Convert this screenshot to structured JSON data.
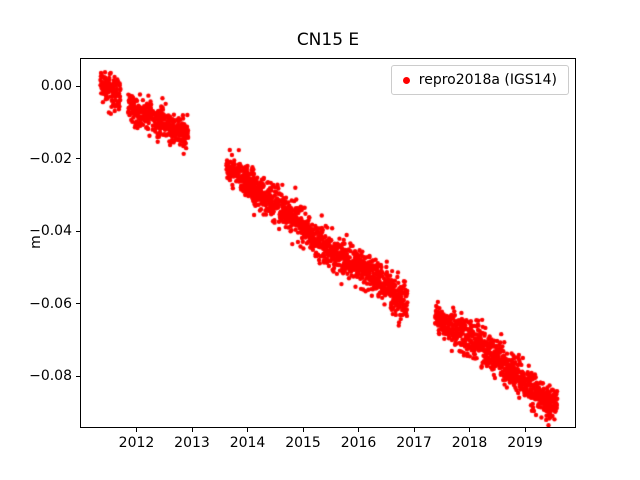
{
  "legend": {
    "label": "repro2018a (IGS14)",
    "marker_color": "#ff0000",
    "edge_color": "#cccccc"
  },
  "chart_data": {
    "type": "scatter",
    "title": "CN15 E",
    "xlabel": "",
    "ylabel": "m",
    "xlim": [
      2011.0,
      2019.9
    ],
    "ylim": [
      -0.094,
      0.0075
    ],
    "xticks": [
      2012,
      2013,
      2014,
      2015,
      2016,
      2017,
      2018,
      2019
    ],
    "xtick_labels": [
      "2012",
      "2013",
      "2014",
      "2015",
      "2016",
      "2017",
      "2018",
      "2019"
    ],
    "yticks": [
      0.0,
      -0.02,
      -0.04,
      -0.06,
      -0.08
    ],
    "ytick_labels": [
      "0.00",
      "−0.02",
      "−0.04",
      "−0.06",
      "−0.08"
    ],
    "grid": false,
    "legend_position": "upper right",
    "marker_size_px": 2.2,
    "series": [
      {
        "name": "repro2018a (IGS14)",
        "color": "#ff0000",
        "marker": "dot",
        "points_per_year": 365,
        "noise_seed": 42,
        "segments": [
          {
            "x0": 2011.35,
            "x1": 2011.71,
            "y0": 0.0005,
            "y1": -0.0025,
            "noise": 0.0022
          },
          {
            "x0": 2011.85,
            "x1": 2012.3,
            "y0": -0.006,
            "y1": -0.009,
            "noise": 0.0022
          },
          {
            "x0": 2012.33,
            "x1": 2012.93,
            "y0": -0.009,
            "y1": -0.0135,
            "noise": 0.0022
          },
          {
            "x0": 2013.62,
            "x1": 2014.02,
            "y0": -0.0225,
            "y1": -0.0265,
            "noise": 0.002
          },
          {
            "x0": 2013.95,
            "x1": 2014.12,
            "y0": -0.0265,
            "y1": -0.027,
            "noise": 0.0018
          },
          {
            "x0": 2014.05,
            "x1": 2014.6,
            "y0": -0.028,
            "y1": -0.0335,
            "noise": 0.0025
          },
          {
            "x0": 2014.6,
            "x1": 2015.12,
            "y0": -0.0335,
            "y1": -0.039,
            "noise": 0.0025
          },
          {
            "x0": 2015.12,
            "x1": 2015.5,
            "y0": -0.041,
            "y1": -0.0455,
            "noise": 0.0025
          },
          {
            "x0": 2015.5,
            "x1": 2016.05,
            "y0": -0.0455,
            "y1": -0.05,
            "noise": 0.0025
          },
          {
            "x0": 2016.05,
            "x1": 2016.6,
            "y0": -0.05,
            "y1": -0.0565,
            "noise": 0.0025
          },
          {
            "x0": 2016.6,
            "x1": 2016.88,
            "y0": -0.0565,
            "y1": -0.06,
            "noise": 0.0028
          },
          {
            "x0": 2017.38,
            "x1": 2017.62,
            "y0": -0.0635,
            "y1": -0.0655,
            "noise": 0.002
          },
          {
            "x0": 2017.62,
            "x1": 2018.12,
            "y0": -0.066,
            "y1": -0.0705,
            "noise": 0.0025
          },
          {
            "x0": 2018.12,
            "x1": 2018.62,
            "y0": -0.0705,
            "y1": -0.076,
            "noise": 0.0025
          },
          {
            "x0": 2018.62,
            "x1": 2019.12,
            "y0": -0.077,
            "y1": -0.083,
            "noise": 0.0025
          },
          {
            "x0": 2019.12,
            "x1": 2019.45,
            "y0": -0.0835,
            "y1": -0.0875,
            "noise": 0.0022
          },
          {
            "x0": 2019.4,
            "x1": 2019.58,
            "y0": -0.088,
            "y1": -0.0865,
            "noise": 0.002
          }
        ]
      }
    ]
  }
}
